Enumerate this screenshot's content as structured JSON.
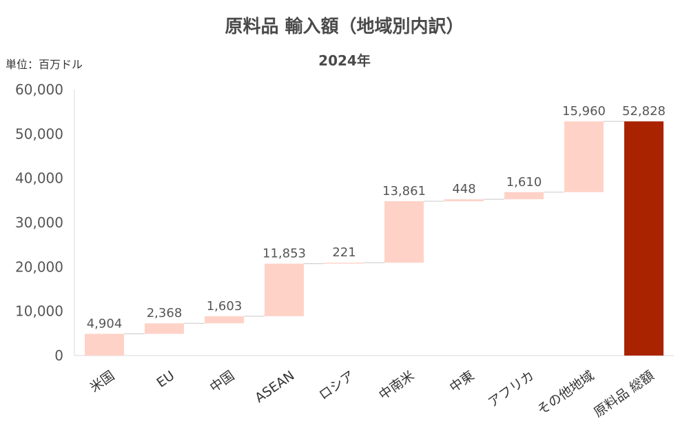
{
  "unit_label": "単位：百万ドル",
  "chart_data": {
    "type": "bar",
    "subtype": "waterfall",
    "title": "原料品 輸入額（地域別内訳）",
    "subtitle": "2024年",
    "ylim": [
      0,
      60000
    ],
    "yticks": [
      "0",
      "10,000",
      "20,000",
      "30,000",
      "40,000",
      "50,000",
      "60,000"
    ],
    "categories": [
      "米国",
      "EU",
      "中国",
      "ASEAN",
      "ロシア",
      "中南米",
      "中東",
      "アフリカ",
      "その他地域",
      "原料品 総額"
    ],
    "values": [
      4904,
      2368,
      1603,
      11853,
      221,
      13861,
      448,
      1610,
      15960,
      52828
    ],
    "value_labels": [
      "4,904",
      "2,368",
      "1,603",
      "11,853",
      "221",
      "13,861",
      "448",
      "1,610",
      "15,960",
      "52,828"
    ],
    "total_index": 9,
    "grid": false,
    "legend": "none",
    "colors": {
      "step": "#ffd2c8",
      "total": "#a92300",
      "connector": "#c8c8c8",
      "axis": "#d9d9d9"
    }
  }
}
